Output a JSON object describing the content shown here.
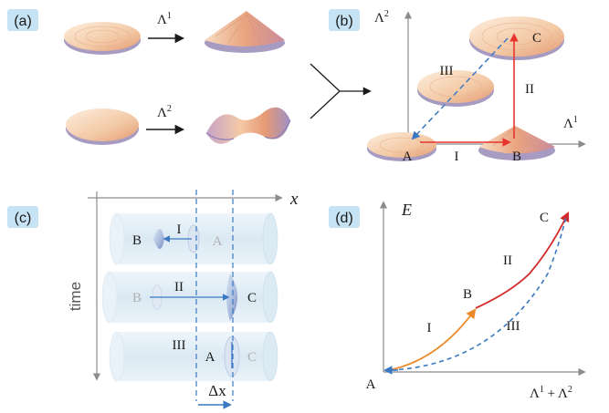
{
  "colors": {
    "tag_bg": "#c6e2f5",
    "disc_light": "#fbe7d4",
    "disc_dark": "#e6a47c",
    "disc_edge": "#a79bc2",
    "red_arrow": "#e8342f",
    "blue_dashed": "#3a78c2",
    "orange_curve": "#ec8a2a",
    "red_curve": "#d42a2a",
    "cylinder": "#e4f0f8",
    "axis_gray": "#8c8c8c"
  },
  "panel_a": {
    "tag": "(a)",
    "arrow1_label": "Λ",
    "arrow1_sup": "1",
    "arrow2_label": "Λ",
    "arrow2_sup": "2"
  },
  "panel_b": {
    "tag": "(b)",
    "y_axis_label": "Λ",
    "y_axis_sup": "2",
    "x_axis_label": "Λ",
    "x_axis_sup": "1",
    "point_a": "A",
    "point_b": "B",
    "point_c": "C",
    "path_1": "I",
    "path_2": "II",
    "path_3": "III"
  },
  "panel_c": {
    "tag": "(c)",
    "x_axis_label": "x",
    "time_label": "time",
    "delta_label": "Δx",
    "row1": {
      "left": "B",
      "path": "I",
      "right": "A"
    },
    "row2": {
      "left": "B",
      "path": "II",
      "right": "C"
    },
    "row3": {
      "path": "III",
      "left": "A",
      "right": "C"
    }
  },
  "panel_d": {
    "tag": "(d)",
    "y_axis_label": "E",
    "x_axis_label": "Λ",
    "x_axis_sup1": "1",
    "x_axis_plus": " + Λ",
    "x_axis_sup2": "2",
    "point_a": "A",
    "point_b": "B",
    "point_c": "C",
    "path_1": "I",
    "path_2": "II",
    "path_3": "III"
  }
}
